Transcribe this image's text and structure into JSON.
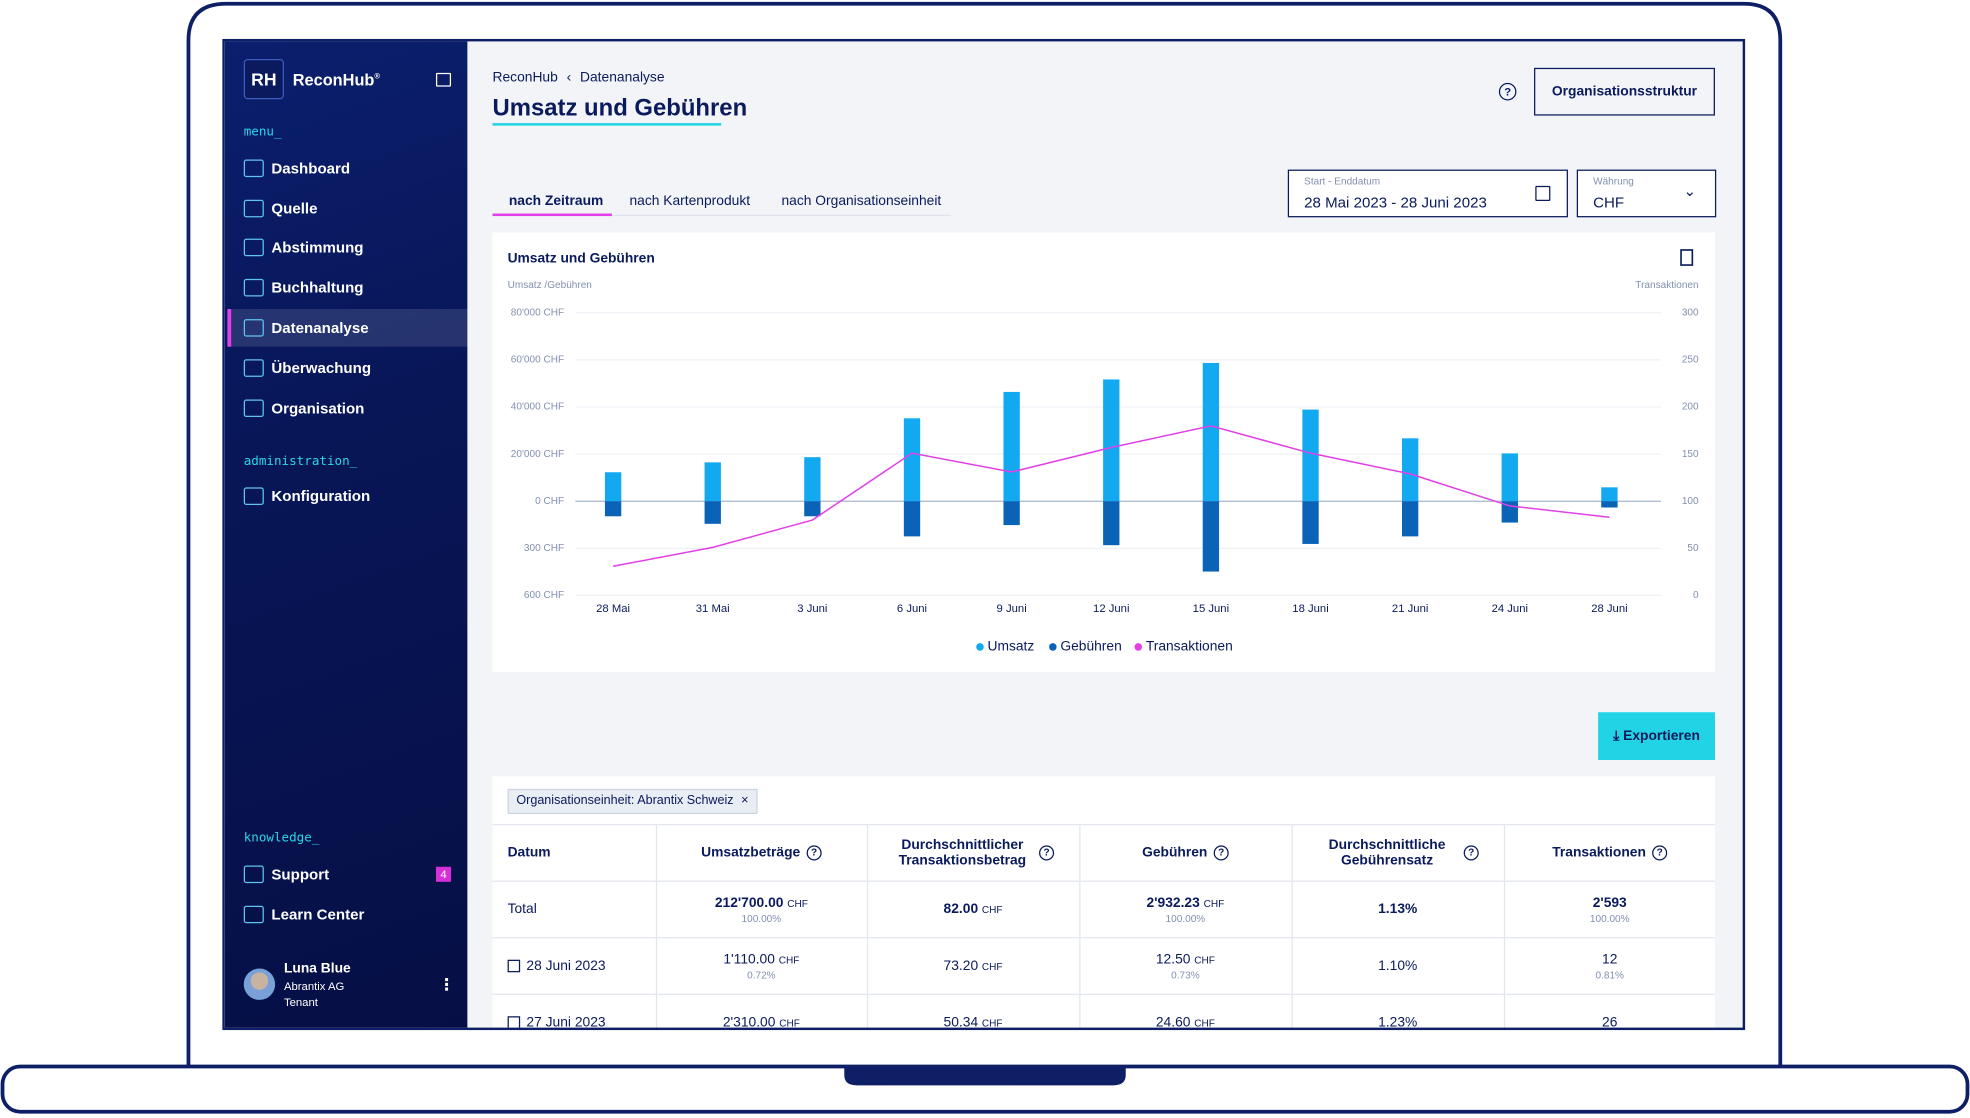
{
  "sidebar": {
    "logo": "RH",
    "brand": "ReconHub",
    "brand_mark": "®",
    "sections": [
      {
        "label": "menu_",
        "items": [
          "Dashboard",
          "Quelle",
          "Abstimmung",
          "Buchhaltung",
          "Datenanalyse",
          "Überwachung",
          "Organisation"
        ]
      },
      {
        "label": "administration_",
        "items": [
          "Konfiguration"
        ]
      },
      {
        "label": "knowledge_",
        "items": [
          "Support",
          "Learn Center"
        ]
      }
    ],
    "support_badge": "4",
    "user": {
      "name": "Luna Blue",
      "company": "Abrantix AG",
      "role": "Tenant"
    }
  },
  "header": {
    "breadcrumb": [
      "ReconHub",
      "Datenanalyse"
    ],
    "title": "Umsatz und Gebühren",
    "button": "Organisationsstruktur"
  },
  "tabs": [
    "nach Zeitraum",
    "nach Kartenprodukt",
    "nach Organisationseinheit"
  ],
  "filters": {
    "date_label": "Start - Enddatum",
    "date_value": "28 Mai 2023 - 28 Juni 2023",
    "currency_label": "Währung",
    "currency_value": "CHF"
  },
  "chart_data": {
    "type": "bar",
    "title": "Umsatz und Gebühren",
    "y_label": "Umsatz /Gebühren",
    "y2_label": "Transaktionen",
    "categories": [
      "28 Mai",
      "31 Mai",
      "3 Juni",
      "6 Juni",
      "9 Juni",
      "12 Juni",
      "15 Juni",
      "18 Juni",
      "21 Juni",
      "24 Juni",
      "28 Juni"
    ],
    "ylim": [
      0,
      80000
    ],
    "yticks": [
      {
        "value": 80000,
        "label": "80'000 CHF"
      },
      {
        "value": 60000,
        "label": "60'000 CHF"
      },
      {
        "value": 40000,
        "label": "40'000 CHF"
      },
      {
        "value": 20000,
        "label": "20'000 CHF"
      },
      {
        "value": 0,
        "label": "0 CHF"
      }
    ],
    "fee_lim": [
      0,
      600
    ],
    "fee_ticks": [
      {
        "value": 300,
        "label": "300 CHF"
      },
      {
        "value": 600,
        "label": "600 CHF"
      }
    ],
    "y2lim": [
      0,
      300
    ],
    "y2ticks": [
      300,
      250,
      200,
      150,
      100,
      50,
      0
    ],
    "grid": true,
    "series": [
      {
        "name": "Umsatz",
        "color": "#12a9f0",
        "values": [
          12300,
          16500,
          18700,
          35200,
          46400,
          51700,
          58700,
          38900,
          26700,
          20300,
          5900
        ]
      },
      {
        "name": "Gebühren",
        "color": "#0b63b8",
        "axis": "fee",
        "values": [
          96,
          144,
          96,
          224,
          152,
          280,
          448,
          272,
          224,
          136,
          40
        ]
      },
      {
        "name": "Transaktionen",
        "color": "#e23fe6",
        "axis": "y2",
        "type": "line",
        "values": [
          31,
          51,
          80,
          151,
          131,
          157,
          180,
          151,
          129,
          95,
          83
        ]
      }
    ]
  },
  "export_button": "Exportieren",
  "table": {
    "chip": "Organisationseinheit: Abrantix Schweiz",
    "columns": [
      "Datum",
      "Umsatzbeträge",
      "Durchschnittlicher Transaktionsbetrag",
      "Gebühren",
      "Durchschnittliche Gebührensatz",
      "Transaktionen"
    ],
    "rows": [
      [
        {
          "amount": "Total"
        },
        {
          "amount": "212'700.00",
          "unit": "CHF",
          "share": "100.00%"
        },
        {
          "amount": "82.00",
          "unit": "CHF"
        },
        {
          "amount": "2'932.23",
          "unit": "CHF",
          "share": "100.00%"
        },
        {
          "amount": "1.13%"
        },
        {
          "amount": "2'593",
          "share": "100.00%"
        }
      ],
      [
        {
          "amount": "28 Juni 2023"
        },
        {
          "amount": "1'110.00",
          "unit": "CHF",
          "share": "0.72%"
        },
        {
          "amount": "73.20",
          "unit": "CHF"
        },
        {
          "amount": "12.50",
          "unit": "CHF",
          "share": "0.73%"
        },
        {
          "amount": "1.10%"
        },
        {
          "amount": "12",
          "share": "0.81%"
        }
      ],
      [
        {
          "amount": "27 Juni 2023"
        },
        {
          "amount": "2'310.00",
          "unit": "CHF"
        },
        {
          "amount": "50.34",
          "unit": "CHF"
        },
        {
          "amount": "24.60",
          "unit": "CHF"
        },
        {
          "amount": "1.23%"
        },
        {
          "amount": "26"
        }
      ]
    ]
  }
}
